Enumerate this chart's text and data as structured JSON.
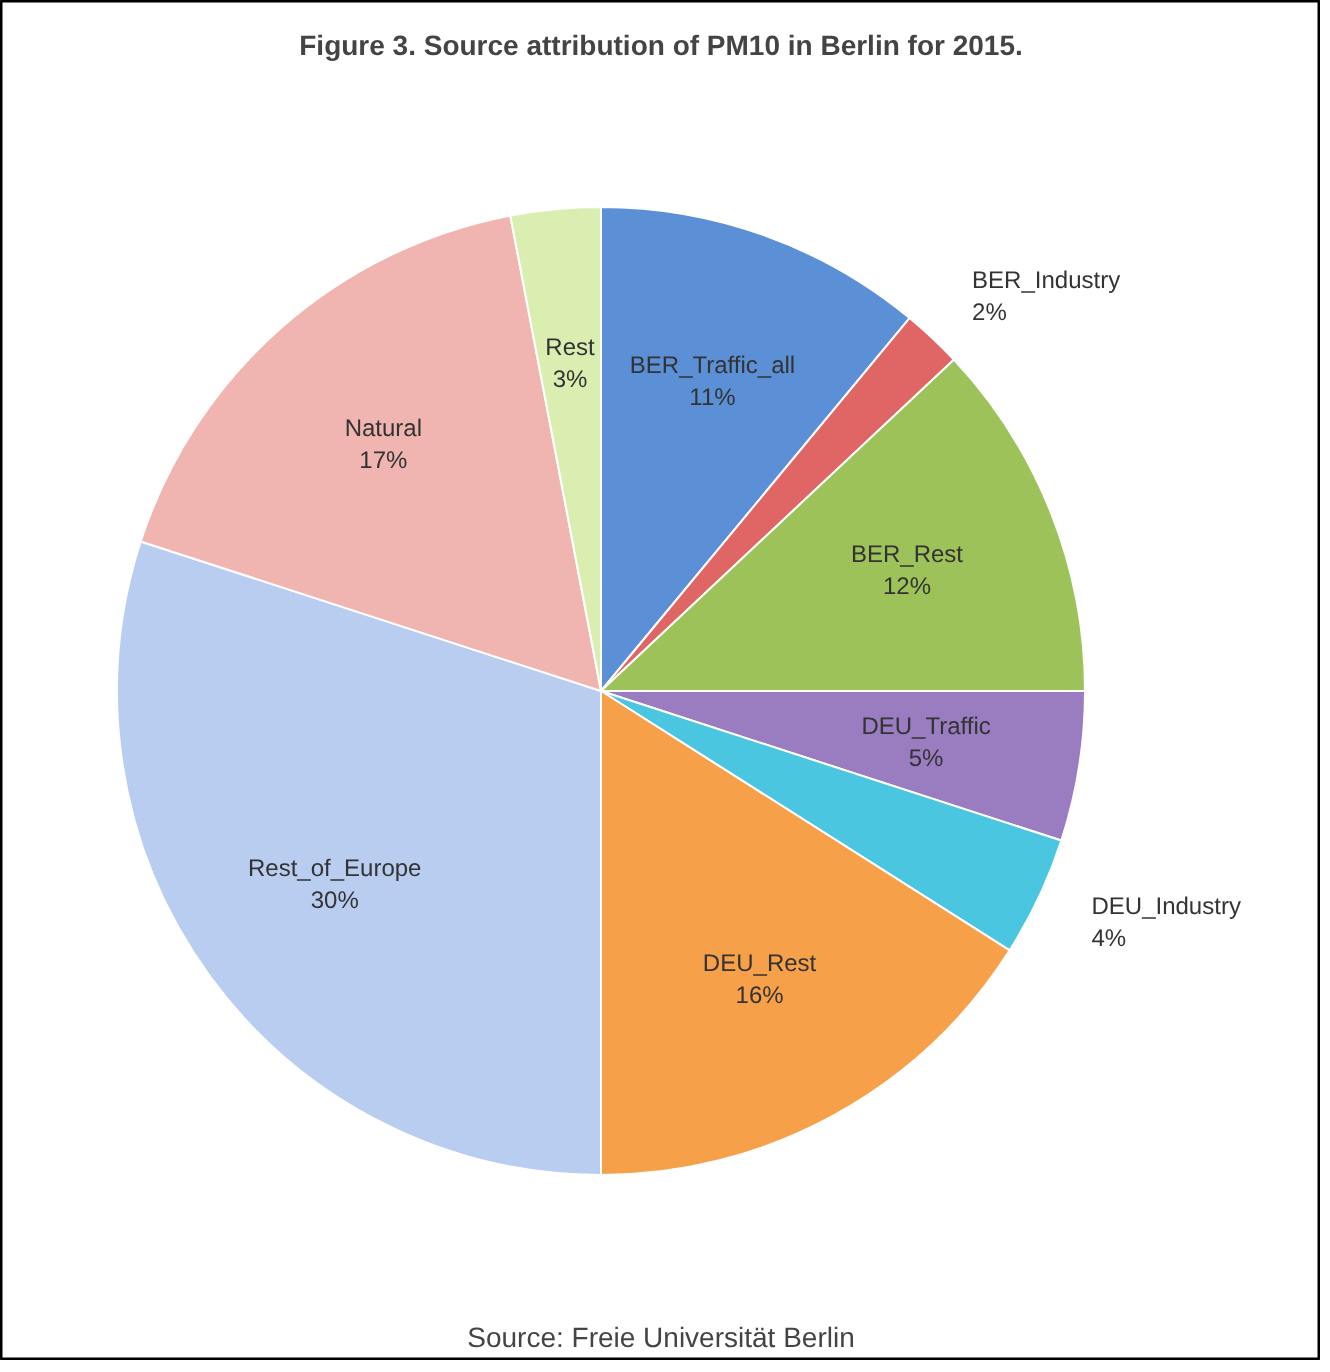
{
  "chart_data": {
    "type": "pie",
    "title": "Figure 3. Source attribution of PM10 in Berlin for 2015.",
    "categories": [
      "BER_Traffic_all",
      "BER_Industry",
      "BER_Rest",
      "DEU_Traffic",
      "DEU_Industry",
      "DEU_Rest",
      "Rest_of_Europe",
      "Natural",
      "Rest"
    ],
    "values": [
      11,
      2,
      12,
      5,
      4,
      16,
      30,
      17,
      3
    ],
    "value_labels": [
      "11%",
      "2%",
      "12%",
      "5%",
      "4%",
      "16%",
      "30%",
      "17%",
      "3%"
    ],
    "colors": [
      "#5b8fd6",
      "#e06666",
      "#9dc25a",
      "#9a7cc0",
      "#4bc6e0",
      "#f7a04a",
      "#b8cdf0",
      "#f0b5b0",
      "#d9eeb0"
    ],
    "annotations": [
      "Source: Freie Universität Berlin"
    ]
  }
}
